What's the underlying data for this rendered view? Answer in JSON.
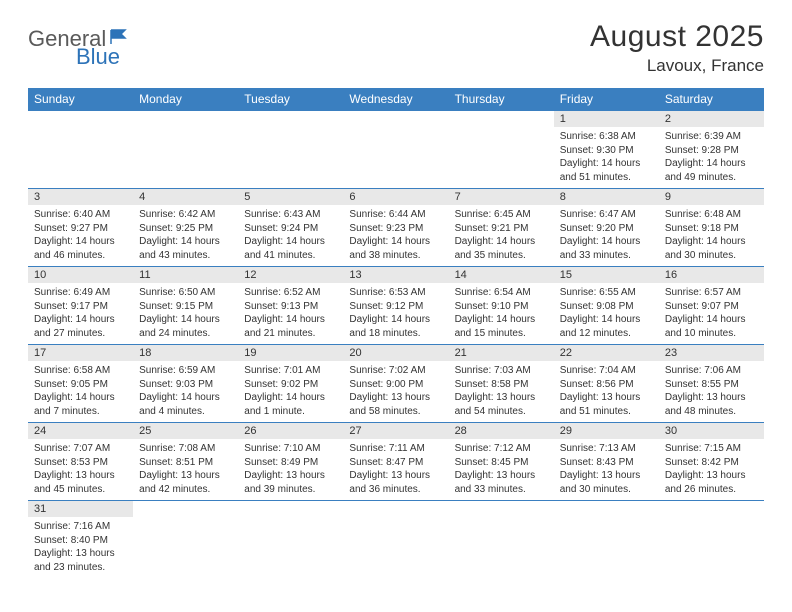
{
  "logo": {
    "part1": "General",
    "part2": "Blue"
  },
  "title": "August 2025",
  "location": "Lavoux, France",
  "colors": {
    "header_bg": "#3a7fc0",
    "header_text": "#ffffff",
    "daynum_bg": "#e8e8e8",
    "border": "#3a7fc0",
    "text": "#333333",
    "logo_gray": "#5a5a5a",
    "logo_blue": "#2d73b8"
  },
  "weekdays": [
    "Sunday",
    "Monday",
    "Tuesday",
    "Wednesday",
    "Thursday",
    "Friday",
    "Saturday"
  ],
  "weeks": [
    [
      null,
      null,
      null,
      null,
      null,
      {
        "n": "1",
        "sr": "Sunrise: 6:38 AM",
        "ss": "Sunset: 9:30 PM",
        "dl": "Daylight: 14 hours and 51 minutes."
      },
      {
        "n": "2",
        "sr": "Sunrise: 6:39 AM",
        "ss": "Sunset: 9:28 PM",
        "dl": "Daylight: 14 hours and 49 minutes."
      }
    ],
    [
      {
        "n": "3",
        "sr": "Sunrise: 6:40 AM",
        "ss": "Sunset: 9:27 PM",
        "dl": "Daylight: 14 hours and 46 minutes."
      },
      {
        "n": "4",
        "sr": "Sunrise: 6:42 AM",
        "ss": "Sunset: 9:25 PM",
        "dl": "Daylight: 14 hours and 43 minutes."
      },
      {
        "n": "5",
        "sr": "Sunrise: 6:43 AM",
        "ss": "Sunset: 9:24 PM",
        "dl": "Daylight: 14 hours and 41 minutes."
      },
      {
        "n": "6",
        "sr": "Sunrise: 6:44 AM",
        "ss": "Sunset: 9:23 PM",
        "dl": "Daylight: 14 hours and 38 minutes."
      },
      {
        "n": "7",
        "sr": "Sunrise: 6:45 AM",
        "ss": "Sunset: 9:21 PM",
        "dl": "Daylight: 14 hours and 35 minutes."
      },
      {
        "n": "8",
        "sr": "Sunrise: 6:47 AM",
        "ss": "Sunset: 9:20 PM",
        "dl": "Daylight: 14 hours and 33 minutes."
      },
      {
        "n": "9",
        "sr": "Sunrise: 6:48 AM",
        "ss": "Sunset: 9:18 PM",
        "dl": "Daylight: 14 hours and 30 minutes."
      }
    ],
    [
      {
        "n": "10",
        "sr": "Sunrise: 6:49 AM",
        "ss": "Sunset: 9:17 PM",
        "dl": "Daylight: 14 hours and 27 minutes."
      },
      {
        "n": "11",
        "sr": "Sunrise: 6:50 AM",
        "ss": "Sunset: 9:15 PM",
        "dl": "Daylight: 14 hours and 24 minutes."
      },
      {
        "n": "12",
        "sr": "Sunrise: 6:52 AM",
        "ss": "Sunset: 9:13 PM",
        "dl": "Daylight: 14 hours and 21 minutes."
      },
      {
        "n": "13",
        "sr": "Sunrise: 6:53 AM",
        "ss": "Sunset: 9:12 PM",
        "dl": "Daylight: 14 hours and 18 minutes."
      },
      {
        "n": "14",
        "sr": "Sunrise: 6:54 AM",
        "ss": "Sunset: 9:10 PM",
        "dl": "Daylight: 14 hours and 15 minutes."
      },
      {
        "n": "15",
        "sr": "Sunrise: 6:55 AM",
        "ss": "Sunset: 9:08 PM",
        "dl": "Daylight: 14 hours and 12 minutes."
      },
      {
        "n": "16",
        "sr": "Sunrise: 6:57 AM",
        "ss": "Sunset: 9:07 PM",
        "dl": "Daylight: 14 hours and 10 minutes."
      }
    ],
    [
      {
        "n": "17",
        "sr": "Sunrise: 6:58 AM",
        "ss": "Sunset: 9:05 PM",
        "dl": "Daylight: 14 hours and 7 minutes."
      },
      {
        "n": "18",
        "sr": "Sunrise: 6:59 AM",
        "ss": "Sunset: 9:03 PM",
        "dl": "Daylight: 14 hours and 4 minutes."
      },
      {
        "n": "19",
        "sr": "Sunrise: 7:01 AM",
        "ss": "Sunset: 9:02 PM",
        "dl": "Daylight: 14 hours and 1 minute."
      },
      {
        "n": "20",
        "sr": "Sunrise: 7:02 AM",
        "ss": "Sunset: 9:00 PM",
        "dl": "Daylight: 13 hours and 58 minutes."
      },
      {
        "n": "21",
        "sr": "Sunrise: 7:03 AM",
        "ss": "Sunset: 8:58 PM",
        "dl": "Daylight: 13 hours and 54 minutes."
      },
      {
        "n": "22",
        "sr": "Sunrise: 7:04 AM",
        "ss": "Sunset: 8:56 PM",
        "dl": "Daylight: 13 hours and 51 minutes."
      },
      {
        "n": "23",
        "sr": "Sunrise: 7:06 AM",
        "ss": "Sunset: 8:55 PM",
        "dl": "Daylight: 13 hours and 48 minutes."
      }
    ],
    [
      {
        "n": "24",
        "sr": "Sunrise: 7:07 AM",
        "ss": "Sunset: 8:53 PM",
        "dl": "Daylight: 13 hours and 45 minutes."
      },
      {
        "n": "25",
        "sr": "Sunrise: 7:08 AM",
        "ss": "Sunset: 8:51 PM",
        "dl": "Daylight: 13 hours and 42 minutes."
      },
      {
        "n": "26",
        "sr": "Sunrise: 7:10 AM",
        "ss": "Sunset: 8:49 PM",
        "dl": "Daylight: 13 hours and 39 minutes."
      },
      {
        "n": "27",
        "sr": "Sunrise: 7:11 AM",
        "ss": "Sunset: 8:47 PM",
        "dl": "Daylight: 13 hours and 36 minutes."
      },
      {
        "n": "28",
        "sr": "Sunrise: 7:12 AM",
        "ss": "Sunset: 8:45 PM",
        "dl": "Daylight: 13 hours and 33 minutes."
      },
      {
        "n": "29",
        "sr": "Sunrise: 7:13 AM",
        "ss": "Sunset: 8:43 PM",
        "dl": "Daylight: 13 hours and 30 minutes."
      },
      {
        "n": "30",
        "sr": "Sunrise: 7:15 AM",
        "ss": "Sunset: 8:42 PM",
        "dl": "Daylight: 13 hours and 26 minutes."
      }
    ],
    [
      {
        "n": "31",
        "sr": "Sunrise: 7:16 AM",
        "ss": "Sunset: 8:40 PM",
        "dl": "Daylight: 13 hours and 23 minutes."
      },
      null,
      null,
      null,
      null,
      null,
      null
    ]
  ]
}
